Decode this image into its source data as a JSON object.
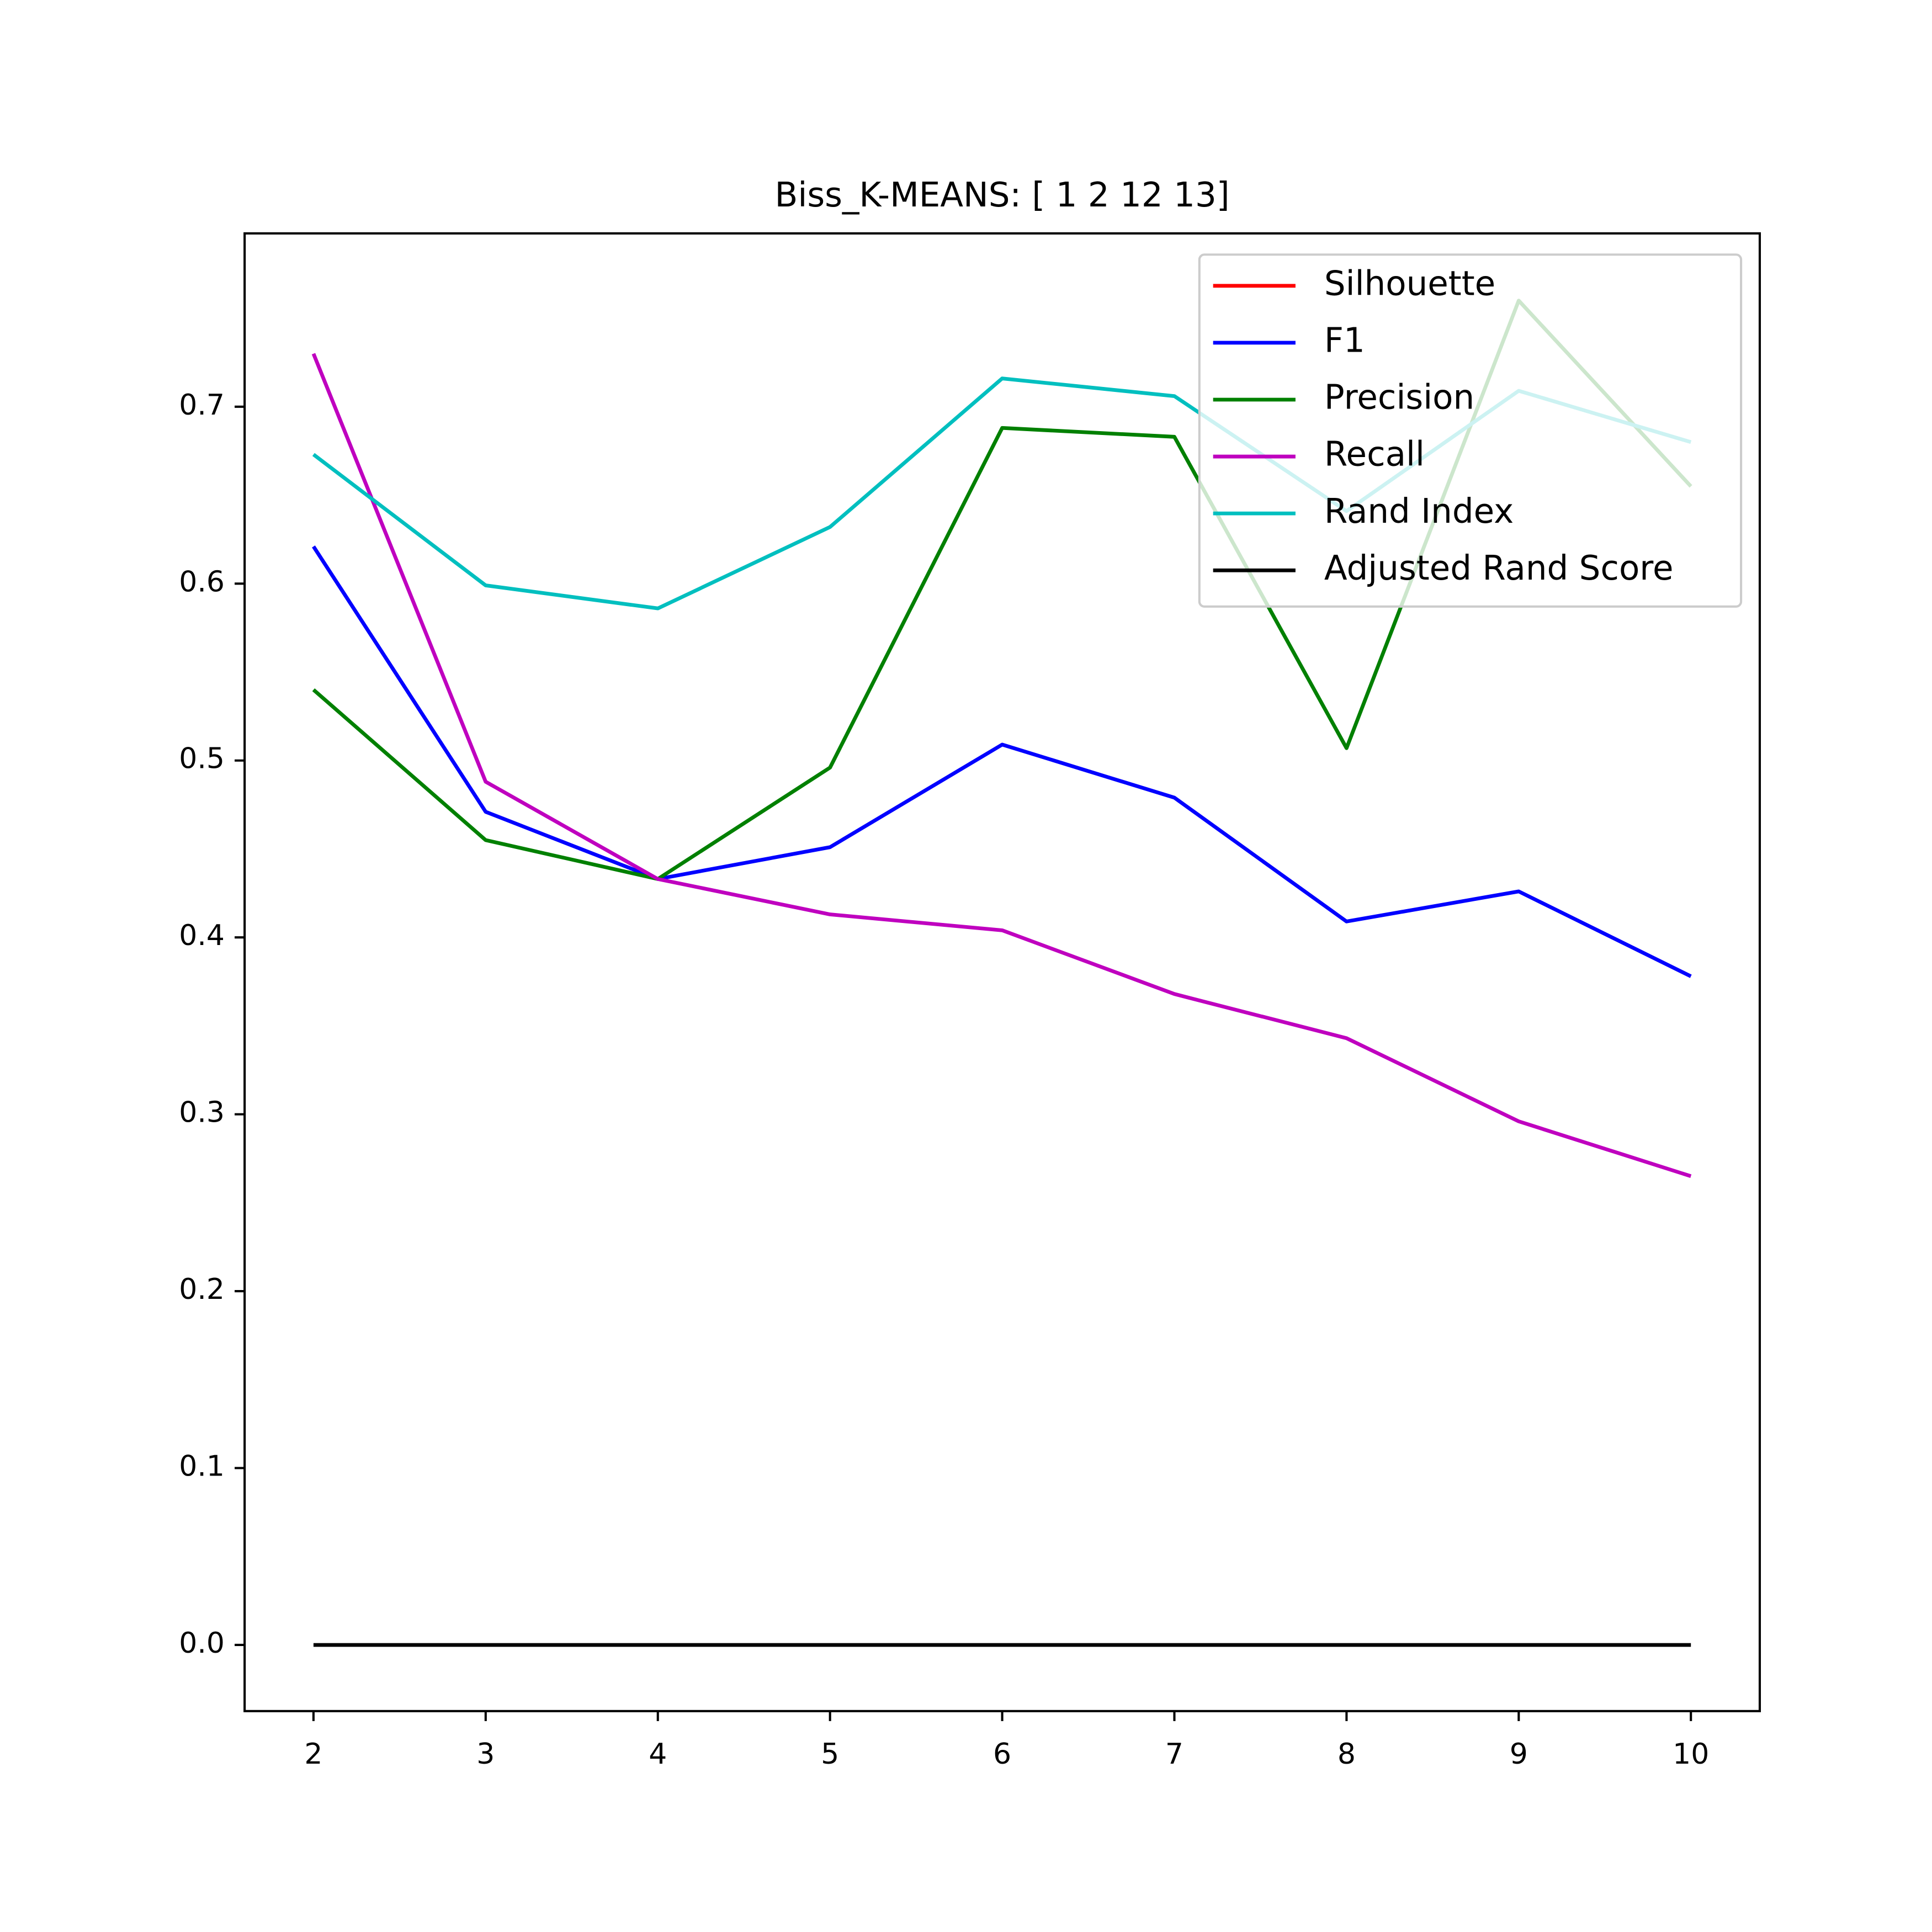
{
  "chart_data": {
    "type": "line",
    "title": "Biss_K-MEANS: [ 1  2 12 13]",
    "x": [
      2,
      3,
      4,
      5,
      6,
      7,
      8,
      9,
      10
    ],
    "series": [
      {
        "name": "Silhouette",
        "color": "#ff0000",
        "values": [
          null,
          null,
          null,
          null,
          null,
          null,
          null,
          null,
          null
        ]
      },
      {
        "name": "F1",
        "color": "#0000ff",
        "values": [
          0.621,
          0.471,
          0.433,
          0.451,
          0.509,
          0.479,
          0.409,
          0.426,
          0.378
        ]
      },
      {
        "name": "Precision",
        "color": "#008000",
        "values": [
          0.54,
          0.455,
          0.433,
          0.496,
          0.688,
          0.683,
          0.507,
          0.76,
          0.655
        ]
      },
      {
        "name": "Recall",
        "color": "#bf00bf",
        "values": [
          0.73,
          0.488,
          0.433,
          0.413,
          0.404,
          0.368,
          0.343,
          0.296,
          0.265
        ]
      },
      {
        "name": "Rand Index",
        "color": "#00bfbf",
        "values": [
          0.673,
          0.599,
          0.586,
          0.632,
          0.716,
          0.706,
          0.641,
          0.709,
          0.68
        ]
      },
      {
        "name": "Adjusted Rand Score",
        "color": "#000000",
        "values": [
          0,
          0,
          0,
          0,
          0,
          0,
          0,
          0,
          0
        ]
      }
    ],
    "xlim": [
      1.6,
      10.4
    ],
    "ylim": [
      -0.0374,
      0.798
    ],
    "xticks": [
      2,
      3,
      4,
      5,
      6,
      7,
      8,
      9,
      10
    ],
    "yticks": [
      {
        "value": 0,
        "label": "0.0"
      },
      0.1,
      0.2,
      0.3,
      0.4,
      0.5,
      0.6,
      0.7
    ],
    "legend": "upper right",
    "grid": false
  }
}
